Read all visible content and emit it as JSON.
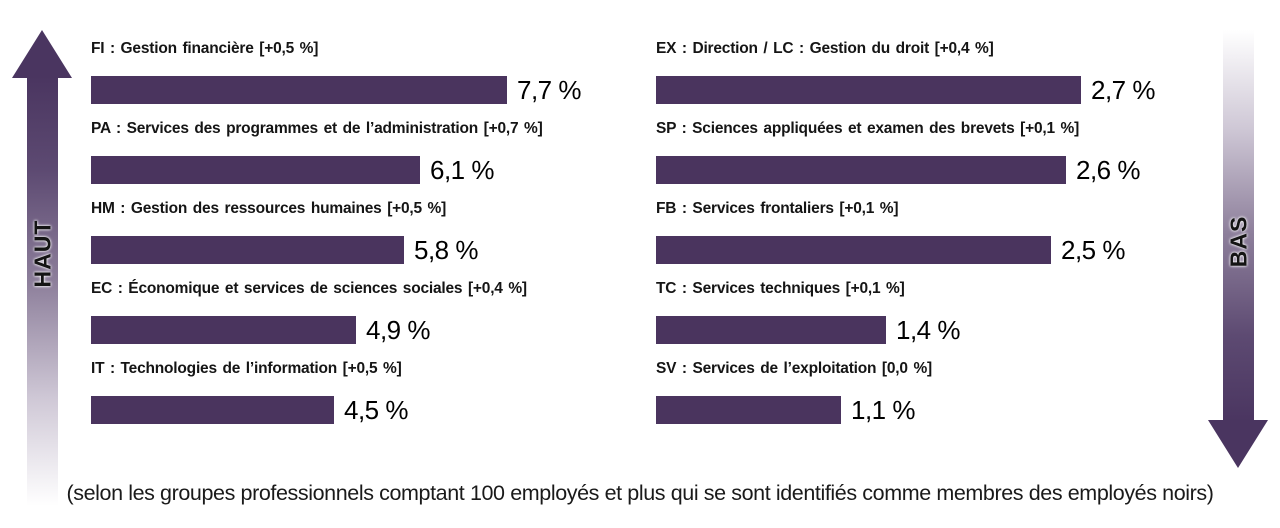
{
  "colors": {
    "bar": "#4a345e",
    "arrow_dark": "#4a3560",
    "arrow_light": "#ffffff"
  },
  "chart_data": {
    "type": "bar",
    "orientation": "horizontal",
    "value_unit": "%",
    "left_axis_label": "HAUT",
    "right_axis_label": "BAS",
    "legend_position": "none",
    "grid": false,
    "left_column": {
      "items": [
        {
          "label": "FI : Gestion financière [+0,5 %]",
          "value": 7.7,
          "value_label": "7,7 %"
        },
        {
          "label": "PA : Services des programmes et de l’administration [+0,7 %]",
          "value": 6.1,
          "value_label": "6,1 %"
        },
        {
          "label": "HM : Gestion des ressources humaines [+0,5 %]",
          "value": 5.8,
          "value_label": "5,8 %"
        },
        {
          "label": "EC : Économique et services de sciences sociales [+0,4 %]",
          "value": 4.9,
          "value_label": "4,9 %"
        },
        {
          "label": "IT : Technologies de l’information [+0,5 %]",
          "value": 4.5,
          "value_label": "4,5 %"
        }
      ],
      "xlim": [
        0,
        7.7
      ]
    },
    "right_column": {
      "items": [
        {
          "label": "EX : Direction / LC : Gestion du droit [+0,4 %]",
          "value": 2.7,
          "value_label": "2,7 %"
        },
        {
          "label": "SP : Sciences appliquées et examen des brevets [+0,1 %]",
          "value": 2.6,
          "value_label": "2,6 %"
        },
        {
          "label": "FB : Services frontaliers [+0,1 %]",
          "value": 2.5,
          "value_label": "2,5 %"
        },
        {
          "label": "TC : Services techniques [+0,1 %]",
          "value": 1.4,
          "value_label": "1,4 %"
        },
        {
          "label": "SV : Services de l’exploitation [0,0 %]",
          "value": 1.1,
          "value_label": "1,1 %"
        }
      ],
      "xlim": [
        0,
        2.7
      ]
    },
    "footnote": "(selon les groupes professionnels comptant 100 employés et plus qui se sont identifiés comme membres des employés noirs)"
  }
}
